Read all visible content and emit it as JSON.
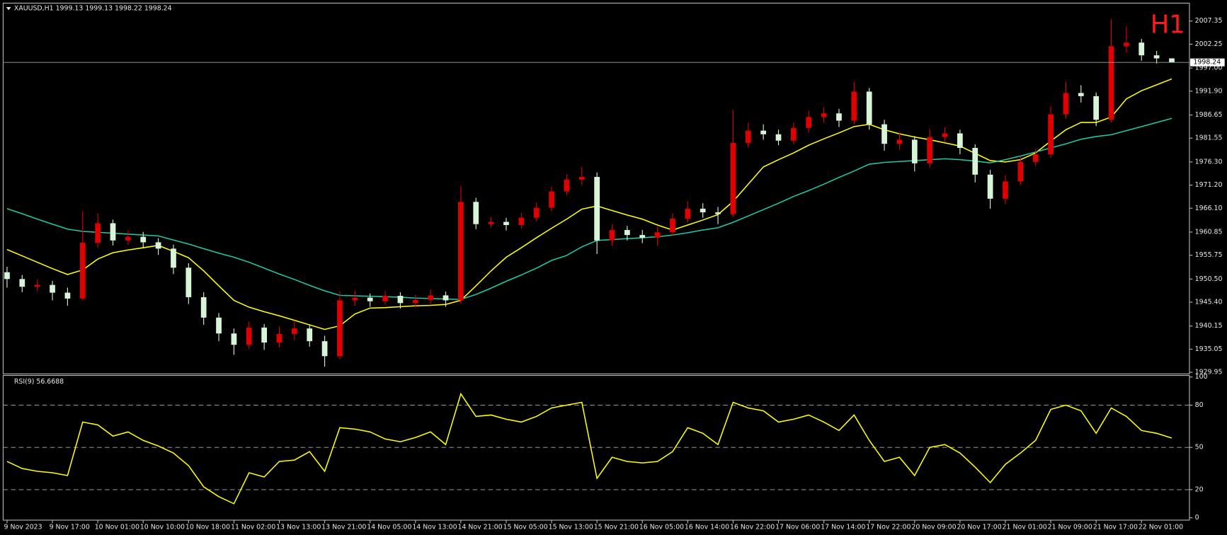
{
  "chart_data": [
    {
      "type": "candlestick",
      "title": "XAUUSD,H1  1999.13 1999.13 1998.22 1998.24",
      "annotation": "H1",
      "categories": [
        "9 Nov 2023",
        null,
        null,
        "9 Nov 17:00",
        null,
        null,
        "10 Nov 01:00",
        null,
        null,
        "10 Nov 10:00",
        null,
        null,
        "10 Nov 18:00",
        null,
        null,
        "11 Nov 02:00",
        null,
        null,
        "13 Nov 13:00",
        null,
        null,
        "13 Nov 21:00",
        null,
        null,
        "14 Nov 05:00",
        null,
        null,
        "14 Nov 13:00",
        null,
        null,
        "14 Nov 21:00",
        null,
        null,
        "15 Nov 05:00",
        null,
        null,
        "15 Nov 13:00",
        null,
        null,
        "15 Nov 21:00",
        null,
        null,
        "16 Nov 05:00",
        null,
        null,
        "16 Nov 14:00",
        null,
        null,
        "16 Nov 22:00",
        null,
        null,
        "17 Nov 06:00",
        null,
        null,
        "17 Nov 14:00",
        null,
        null,
        "17 Nov 22:00",
        null,
        null,
        "20 Nov 09:00",
        null,
        null,
        "20 Nov 17:00",
        null,
        null,
        "21 Nov 01:00",
        null,
        null,
        "21 Nov 09:00",
        null,
        null,
        "21 Nov 17:00",
        null,
        null,
        "22 Nov 01:00",
        null,
        null
      ],
      "open": [
        1952.0,
        1950.5,
        1948.8,
        1949.2,
        1947.5,
        1946.2,
        1958.5,
        1962.8,
        1959.0,
        1959.8,
        1958.6,
        1957.2,
        1953.0,
        1946.5,
        1942.0,
        1938.5,
        1936.0,
        1939.8,
        1936.5,
        1938.4,
        1939.6,
        1936.8,
        1933.5,
        1945.8,
        1946.4,
        1945.6,
        1946.8,
        1945.2,
        1945.9,
        1946.9,
        1945.8,
        1967.5,
        1962.6,
        1963.1,
        1962.4,
        1964.0,
        1966.2,
        1969.8,
        1972.4,
        1973.0,
        1959.0,
        1961.3,
        1960.2,
        1959.6,
        1960.8,
        1963.8,
        1966.0,
        1965.2,
        1964.8,
        1980.5,
        1983.2,
        1982.4,
        1981.0,
        1983.8,
        1986.2,
        1987.0,
        1985.4,
        1991.8,
        1984.6,
        1980.3,
        1981.2,
        1976.0,
        1981.8,
        1982.6,
        1979.4,
        1973.5,
        1968.2,
        1972.0,
        1976.3,
        1978.0,
        1986.8,
        1991.5,
        1990.8,
        1985.6,
        2001.8,
        2002.6,
        1999.8,
        1999.13
      ],
      "high": [
        1953.2,
        1951.4,
        1950.4,
        1950.1,
        1948.6,
        1965.5,
        1965.0,
        1963.6,
        1961.2,
        1960.9,
        1959.5,
        1958.1,
        1954.0,
        1947.6,
        1943.0,
        1939.6,
        1941.2,
        1940.6,
        1940.0,
        1941.4,
        1940.5,
        1938.0,
        1947.8,
        1948.0,
        1947.3,
        1947.9,
        1947.6,
        1947.0,
        1948.2,
        1947.7,
        1971.0,
        1968.4,
        1964.2,
        1964.0,
        1965.1,
        1967.4,
        1970.9,
        1973.6,
        1975.2,
        1974.0,
        1962.6,
        1962.2,
        1961.3,
        1962.0,
        1965.0,
        1967.6,
        1967.2,
        1966.4,
        1987.8,
        1985.0,
        1984.6,
        1983.4,
        1985.0,
        1987.6,
        1988.4,
        1988.0,
        1994.0,
        1992.6,
        1985.6,
        1982.8,
        1982.0,
        1983.6,
        1984.0,
        1983.4,
        1980.2,
        1974.6,
        1973.4,
        1977.6,
        1979.2,
        1988.6,
        1994.0,
        1993.2,
        1991.6,
        2007.8,
        2006.2,
        2003.4,
        2000.8,
        1999.13
      ],
      "low": [
        1948.6,
        1947.6,
        1947.9,
        1945.8,
        1944.6,
        1945.8,
        1957.4,
        1957.9,
        1958.0,
        1957.4,
        1955.8,
        1951.6,
        1945.0,
        1940.4,
        1936.8,
        1933.8,
        1935.0,
        1934.9,
        1935.4,
        1937.0,
        1935.6,
        1931.2,
        1932.8,
        1944.6,
        1944.4,
        1944.8,
        1944.0,
        1944.2,
        1945.0,
        1944.4,
        1945.0,
        1961.5,
        1961.8,
        1961.2,
        1961.6,
        1963.2,
        1965.4,
        1969.0,
        1971.2,
        1956.0,
        1957.8,
        1959.0,
        1958.4,
        1957.8,
        1960.0,
        1963.0,
        1964.0,
        1962.6,
        1964.2,
        1979.4,
        1981.2,
        1980.0,
        1980.2,
        1982.8,
        1985.0,
        1984.0,
        1984.6,
        1983.4,
        1978.8,
        1979.0,
        1974.2,
        1975.0,
        1980.6,
        1978.0,
        1971.8,
        1966.0,
        1967.0,
        1971.2,
        1975.4,
        1977.2,
        1985.8,
        1989.4,
        1984.2,
        1985.0,
        2000.4,
        1998.6,
        1998.0,
        1998.22
      ],
      "close": [
        1950.5,
        1948.8,
        1949.2,
        1947.5,
        1946.2,
        1958.5,
        1962.8,
        1959.0,
        1959.8,
        1958.6,
        1957.2,
        1953.0,
        1946.5,
        1942.0,
        1938.5,
        1936.0,
        1939.8,
        1936.5,
        1938.4,
        1939.6,
        1936.8,
        1933.5,
        1945.8,
        1946.4,
        1945.6,
        1946.8,
        1945.2,
        1945.9,
        1946.9,
        1945.8,
        1967.5,
        1962.6,
        1963.1,
        1962.4,
        1964.0,
        1966.2,
        1969.8,
        1972.4,
        1973.0,
        1959.0,
        1961.3,
        1960.2,
        1959.6,
        1960.8,
        1963.8,
        1966.0,
        1965.2,
        1964.8,
        1980.5,
        1983.2,
        1982.4,
        1981.0,
        1983.8,
        1986.2,
        1987.0,
        1985.4,
        1991.8,
        1984.6,
        1980.3,
        1981.2,
        1976.0,
        1981.8,
        1982.6,
        1979.4,
        1973.5,
        1968.2,
        1972.0,
        1976.3,
        1978.0,
        1986.8,
        1991.5,
        1990.8,
        1985.6,
        2001.8,
        2002.6,
        1999.8,
        1999.13,
        1998.24
      ],
      "up_color": "#e00000",
      "down_color": "#d8f5d8",
      "lines": [
        {
          "color": "#ffff00",
          "values": [
            1957.0,
            1955.6,
            1954.2,
            1952.8,
            1951.5,
            1952.5,
            1954.9,
            1956.3,
            1956.9,
            1957.4,
            1957.9,
            1956.6,
            1955.2,
            1952.3,
            1949.0,
            1945.8,
            1944.3,
            1943.3,
            1942.4,
            1941.4,
            1940.4,
            1939.4,
            1940.2,
            1942.8,
            1944.1,
            1944.2,
            1944.4,
            1944.6,
            1944.7,
            1944.9,
            1945.8,
            1949.0,
            1952.3,
            1955.3,
            1957.4,
            1959.6,
            1961.7,
            1963.7,
            1965.9,
            1966.6,
            1965.6,
            1964.6,
            1963.7,
            1962.4,
            1961.3,
            1962.4,
            1963.5,
            1964.7,
            1967.6,
            1971.4,
            1975.2,
            1976.8,
            1978.3,
            1980.0,
            1981.4,
            1982.7,
            1984.1,
            1984.6,
            1983.4,
            1982.5,
            1981.8,
            1981.2,
            1980.5,
            1979.8,
            1978.2,
            1976.6,
            1976.3,
            1976.8,
            1978.3,
            1980.9,
            1983.4,
            1985.0,
            1985.0,
            1986.2,
            1990.2,
            1992.0,
            1993.3,
            1994.6
          ]
        },
        {
          "color": "#20c8a8",
          "values": [
            1966.0,
            1964.9,
            1963.7,
            1962.6,
            1961.5,
            1961.0,
            1960.8,
            1960.6,
            1960.4,
            1960.2,
            1960.0,
            1959.1,
            1958.2,
            1957.2,
            1956.2,
            1955.3,
            1954.2,
            1952.9,
            1951.6,
            1950.4,
            1949.1,
            1947.9,
            1946.9,
            1946.8,
            1946.7,
            1946.6,
            1946.5,
            1946.3,
            1946.2,
            1946.1,
            1946.0,
            1947.1,
            1948.5,
            1950.0,
            1951.4,
            1952.9,
            1954.6,
            1955.7,
            1957.6,
            1959.0,
            1959.2,
            1959.4,
            1959.6,
            1959.8,
            1960.2,
            1960.7,
            1961.3,
            1961.8,
            1963.0,
            1964.4,
            1965.8,
            1967.2,
            1968.7,
            1970.0,
            1971.4,
            1972.9,
            1974.3,
            1975.8,
            1976.2,
            1976.4,
            1976.6,
            1976.8,
            1977.0,
            1976.8,
            1976.5,
            1976.1,
            1976.8,
            1977.6,
            1978.5,
            1979.4,
            1980.3,
            1981.3,
            1981.9,
            1982.3,
            1983.2,
            1984.1,
            1985.0,
            1985.9
          ]
        }
      ],
      "last_price": 1998.24,
      "ylim": [
        1929.6,
        2011.3
      ],
      "yticks": [
        2007.35,
        2002.25,
        {
          "value": 1997,
          "label": "1997.00"
        },
        {
          "value": 1991.9,
          "label": "1991.90"
        },
        1986.65,
        1981.55,
        {
          "value": 1976.3,
          "label": "1976.30"
        },
        {
          "value": 1971.2,
          "label": "1971.20"
        },
        {
          "value": 1966.1,
          "label": "1966.10"
        },
        1960.85,
        1955.75,
        {
          "value": 1950.5,
          "label": "1950.50"
        },
        {
          "value": 1945.4,
          "label": "1945.40"
        },
        1940.15,
        1935.05,
        1929.95
      ]
    },
    {
      "type": "line",
      "title": "RSI(9) 56.6688",
      "color": "#ffff00",
      "values": [
        40,
        35,
        33,
        32,
        30,
        68,
        66,
        58,
        61,
        55,
        51,
        46,
        37,
        22,
        15,
        10,
        32,
        29,
        40,
        41,
        47,
        33,
        64,
        63,
        61,
        56,
        54,
        57,
        61,
        52,
        88,
        72,
        73,
        70,
        68,
        72,
        78,
        80,
        82,
        28,
        43,
        40,
        39,
        40,
        47,
        64,
        60,
        52,
        82,
        78,
        76,
        68,
        70,
        73,
        68,
        62,
        73,
        55,
        40,
        43,
        30,
        50,
        52,
        46,
        36,
        25,
        38,
        46,
        55,
        77,
        80,
        76,
        60,
        78,
        72,
        62,
        60,
        56.6688
      ],
      "ylim": [
        0,
        100
      ],
      "yticks": [
        0,
        20,
        50,
        80,
        100
      ]
    }
  ]
}
